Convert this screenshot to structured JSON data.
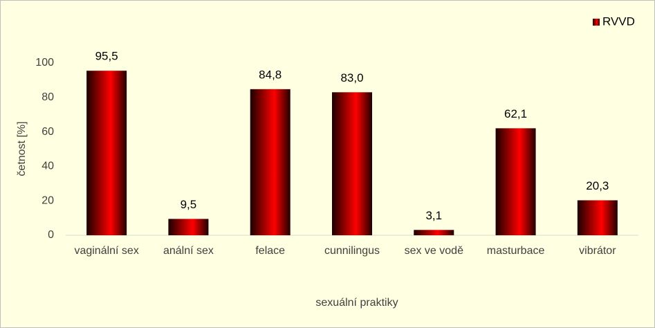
{
  "chart_data": {
    "type": "bar",
    "x_label": "sexuální praktiky",
    "y_label": "četnost [%]",
    "categories": [
      "vaginální sex",
      "anální sex",
      "felace",
      "cunnilingus",
      "sex ve vodě",
      "masturbace",
      "vibrátor"
    ],
    "series": [
      {
        "name": "RVVD",
        "color": "#ff0000",
        "values": [
          95.5,
          9.5,
          84.8,
          83.0,
          3.1,
          62.1,
          20.3
        ],
        "value_labels": [
          "95,5",
          "9,5",
          "84,8",
          "83,0",
          "3,1",
          "62,1",
          "20,3"
        ]
      }
    ],
    "ylim": [
      0,
      100
    ],
    "yticks": [
      0,
      20,
      40,
      60,
      80,
      100
    ],
    "grid": false,
    "legend": "top-right"
  }
}
